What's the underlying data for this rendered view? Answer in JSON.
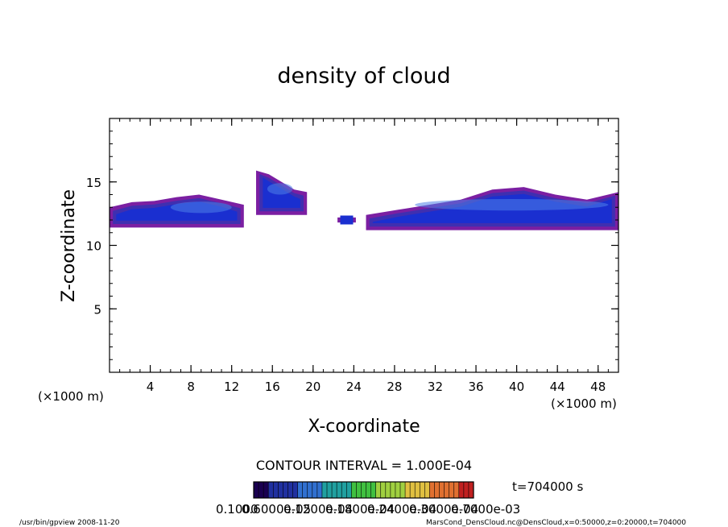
{
  "chart_data": {
    "type": "heatmap",
    "title": "density of cloud",
    "xlabel": "X-coordinate",
    "ylabel": "Z-coordinate",
    "x_unit": "(×1000 m)",
    "y_unit": "(×1000 m)",
    "xlim": [
      0,
      50
    ],
    "ylim": [
      0,
      20
    ],
    "x_ticks": [
      4,
      8,
      12,
      16,
      20,
      24,
      28,
      32,
      36,
      40,
      44,
      48
    ],
    "y_ticks": [
      5,
      10,
      15
    ],
    "contour_interval": "CONTOUR INTERVAL = 1.000E-04",
    "time_label": "t=704000 s",
    "colorbar_labels": [
      "0.1000",
      "0.6000e-05",
      "0.1200e-04",
      "0.1800e-04",
      "0.2400e-04",
      "0.3000e-04",
      "0.7000e-03"
    ],
    "cloud_regions": [
      {
        "x": [
          0,
          13.2
        ],
        "z_base": 11.4,
        "z_top": [
          13.0,
          13.4,
          13.5,
          13.8,
          14.0,
          13.6,
          13.2
        ],
        "core": [
          6,
          12
        ]
      },
      {
        "x": [
          14.4,
          19.4
        ],
        "z_base": 12.4,
        "z_top": [
          15.9,
          15.6,
          15.0,
          14.4,
          14.2
        ],
        "core": [
          15.5,
          18
        ]
      },
      {
        "x": [
          22.4,
          24.2
        ],
        "z_base": 11.8,
        "z_top": [
          12.2,
          12.2
        ],
        "core": null
      },
      {
        "x": [
          25.2,
          50
        ],
        "z_base": 11.2,
        "z_top": [
          12.4,
          12.8,
          13.2,
          13.6,
          14.4,
          14.6,
          14.0,
          13.6,
          14.2
        ],
        "core": [
          30,
          49
        ]
      }
    ],
    "colors": {
      "outer": "#7b1fa2",
      "mid": "#3f2fb0",
      "inner": "#1a2fd0",
      "core": "#4f7fe8",
      "colorbar": [
        "#1a0050",
        "#2030a0",
        "#3070d0",
        "#20a0a0",
        "#40c040",
        "#a0d040",
        "#e0c040",
        "#e07030",
        "#c02020"
      ]
    }
  },
  "footer": {
    "left": "/usr/bin/gpview  2008-11-20",
    "right": "MarsCond_DensCloud.nc@DensCloud,x=0:50000,z=0:20000,t=704000"
  }
}
